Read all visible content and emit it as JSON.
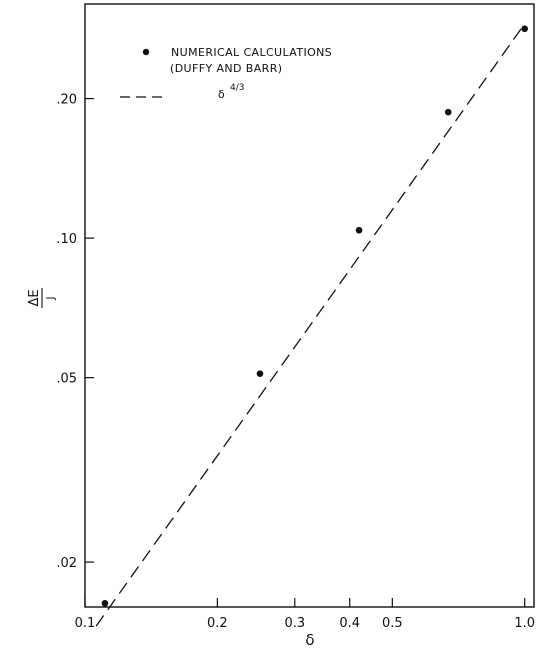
{
  "chart_data": {
    "type": "scatter",
    "x_scale": "log",
    "y_scale": "log",
    "xlabel": "δ",
    "ylabel_numerator": "ΔE",
    "ylabel_denominator": "J",
    "xlim": [
      0.1,
      1.05
    ],
    "ylim": [
      0.016,
      0.32
    ],
    "x_ticks": [
      {
        "value": 0.1,
        "label": "0.1"
      },
      {
        "value": 0.2,
        "label": "0.2"
      },
      {
        "value": 0.3,
        "label": "0.3"
      },
      {
        "value": 0.4,
        "label": "0.4"
      },
      {
        "value": 0.5,
        "label": "0.5"
      },
      {
        "value": 1.0,
        "label": "1.0"
      }
    ],
    "y_ticks": [
      {
        "value": 0.02,
        "label": ".02"
      },
      {
        "value": 0.05,
        "label": ".05"
      },
      {
        "value": 0.1,
        "label": ".10"
      },
      {
        "value": 0.2,
        "label": ".20"
      }
    ],
    "series": [
      {
        "name": "NUMERICAL CALCULATIONS",
        "name_line2": "(DUFFY AND BARR)",
        "marker": "dot",
        "points": [
          {
            "x": 0.111,
            "y": 0.0163
          },
          {
            "x": 0.25,
            "y": 0.051
          },
          {
            "x": 0.42,
            "y": 0.104
          },
          {
            "x": 0.67,
            "y": 0.187
          },
          {
            "x": 1.0,
            "y": 0.283
          }
        ]
      },
      {
        "name": "δ",
        "name_superscript": "4/3",
        "style": "dashed",
        "x_range": [
          0.106,
          1.0
        ],
        "formula": "0.29 * x^(4/3)"
      }
    ],
    "grid": false,
    "legend_position": "top-left"
  }
}
